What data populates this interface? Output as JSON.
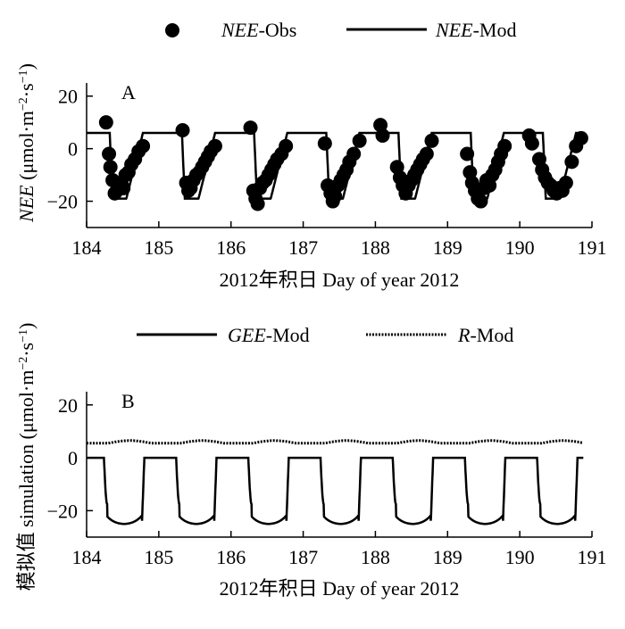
{
  "chart_data": [
    {
      "type": "line",
      "panel_label": "A",
      "ylabel_italic": "NEE",
      "ylabel_rest": " (μmol·m",
      "ylabel_sup1": "−2",
      "ylabel_mid": "·s",
      "ylabel_sup2": "−1",
      "ylabel_end": ")",
      "xlabel": "2012年积日 Day of year 2012",
      "xlim": [
        184,
        191
      ],
      "ylim": [
        -30,
        25
      ],
      "xticks": [
        184,
        185,
        186,
        187,
        188,
        189,
        190,
        191
      ],
      "yticks": [
        -20,
        0,
        20
      ],
      "legend_placement": "top-center",
      "series": [
        {
          "legend_italic": "NEE",
          "legend_rest": "-Obs",
          "kind": "scatter",
          "color": "#000000",
          "points": [
            [
              184.27,
              10
            ],
            [
              184.31,
              -2
            ],
            [
              184.33,
              -7
            ],
            [
              184.36,
              -12
            ],
            [
              184.39,
              -17
            ],
            [
              184.42,
              -16
            ],
            [
              184.45,
              -14
            ],
            [
              184.48,
              -13
            ],
            [
              184.51,
              -15
            ],
            [
              184.54,
              -10
            ],
            [
              184.58,
              -9
            ],
            [
              184.62,
              -6
            ],
            [
              184.67,
              -4
            ],
            [
              184.72,
              -1
            ],
            [
              184.78,
              1
            ],
            [
              185.33,
              7
            ],
            [
              185.38,
              -13
            ],
            [
              185.41,
              -16
            ],
            [
              185.44,
              -15
            ],
            [
              185.48,
              -12
            ],
            [
              185.52,
              -10
            ],
            [
              185.56,
              -9
            ],
            [
              185.6,
              -7
            ],
            [
              185.64,
              -5
            ],
            [
              185.68,
              -3
            ],
            [
              185.72,
              -1
            ],
            [
              185.78,
              1
            ],
            [
              186.27,
              8
            ],
            [
              186.31,
              -16
            ],
            [
              186.34,
              -19
            ],
            [
              186.37,
              -21
            ],
            [
              186.4,
              -15
            ],
            [
              186.44,
              -13
            ],
            [
              186.48,
              -12
            ],
            [
              186.52,
              -10
            ],
            [
              186.56,
              -8
            ],
            [
              186.6,
              -6
            ],
            [
              186.64,
              -4
            ],
            [
              186.7,
              -2
            ],
            [
              186.76,
              1
            ],
            [
              187.3,
              2
            ],
            [
              187.34,
              -14
            ],
            [
              187.38,
              -17
            ],
            [
              187.41,
              -20
            ],
            [
              187.44,
              -18
            ],
            [
              187.48,
              -14
            ],
            [
              187.52,
              -12
            ],
            [
              187.56,
              -10
            ],
            [
              187.6,
              -8
            ],
            [
              187.64,
              -5
            ],
            [
              187.7,
              -2
            ],
            [
              187.78,
              3
            ],
            [
              188.07,
              9
            ],
            [
              188.1,
              5
            ],
            [
              188.3,
              -7
            ],
            [
              188.34,
              -11
            ],
            [
              188.38,
              -14
            ],
            [
              188.42,
              -17
            ],
            [
              188.46,
              -14
            ],
            [
              188.5,
              -12
            ],
            [
              188.54,
              -10
            ],
            [
              188.58,
              -8
            ],
            [
              188.62,
              -6
            ],
            [
              188.66,
              -4
            ],
            [
              188.71,
              -2
            ],
            [
              188.78,
              3
            ],
            [
              189.27,
              -2
            ],
            [
              189.31,
              -9
            ],
            [
              189.34,
              -13
            ],
            [
              189.38,
              -16
            ],
            [
              189.42,
              -19
            ],
            [
              189.46,
              -20
            ],
            [
              189.5,
              -15
            ],
            [
              189.54,
              -12
            ],
            [
              189.58,
              -14
            ],
            [
              189.62,
              -10
            ],
            [
              189.66,
              -8
            ],
            [
              189.7,
              -5
            ],
            [
              189.74,
              -2
            ],
            [
              189.79,
              1
            ],
            [
              190.13,
              5
            ],
            [
              190.17,
              2
            ],
            [
              190.27,
              -4
            ],
            [
              190.31,
              -8
            ],
            [
              190.35,
              -11
            ],
            [
              190.39,
              -13
            ],
            [
              190.43,
              -14
            ],
            [
              190.47,
              -16
            ],
            [
              190.51,
              -17
            ],
            [
              190.55,
              -15
            ],
            [
              190.59,
              -16
            ],
            [
              190.64,
              -13
            ],
            [
              190.72,
              -5
            ],
            [
              190.78,
              1
            ],
            [
              190.85,
              4
            ]
          ]
        },
        {
          "legend_italic": "NEE",
          "legend_rest": "-Mod",
          "kind": "line",
          "color": "#000000",
          "days": [
            184,
            185,
            186,
            187,
            188,
            189,
            190
          ],
          "night_level": 6,
          "trough": -19
        }
      ]
    },
    {
      "type": "line",
      "panel_label": "B",
      "ylabel_prefix": "模拟值 simulation (μmol·m",
      "ylabel_sup1": "−2",
      "ylabel_mid": "·s",
      "ylabel_sup2": "−1",
      "ylabel_end": ")",
      "xlabel": "2012年积日 Day of year 2012",
      "xlim": [
        184,
        191
      ],
      "ylim": [
        -30,
        25
      ],
      "xticks": [
        184,
        185,
        186,
        187,
        188,
        189,
        190,
        191
      ],
      "yticks": [
        -20,
        0,
        20
      ],
      "legend_placement": "top-center",
      "series": [
        {
          "legend_italic": "GEE",
          "legend_rest": "-Mod",
          "kind": "line",
          "style": "solid",
          "color": "#000000",
          "days": [
            184,
            185,
            186,
            187,
            188,
            189,
            190
          ],
          "trough": -25
        },
        {
          "legend_italic": "R",
          "legend_rest": "-Mod",
          "kind": "line",
          "style": "dotted",
          "color": "#000000",
          "baseline": 5.5,
          "amplitude": 1
        }
      ]
    }
  ]
}
